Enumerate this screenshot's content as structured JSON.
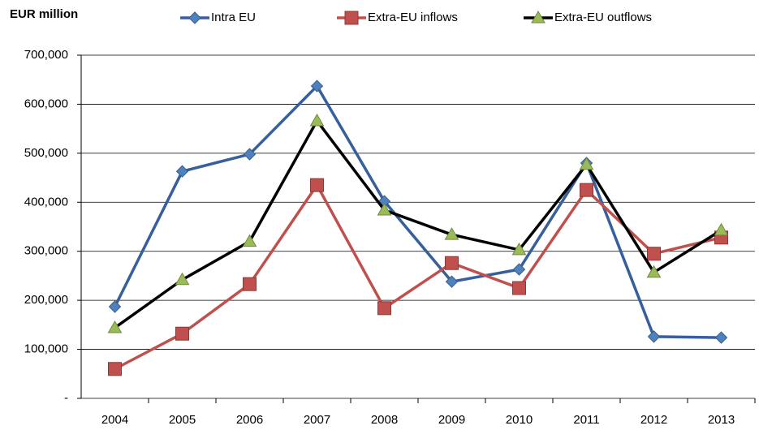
{
  "chart_data": {
    "type": "line",
    "title": "EUR million",
    "categories": [
      "2004",
      "2005",
      "2006",
      "2007",
      "2008",
      "2009",
      "2010",
      "2011",
      "2012",
      "2013"
    ],
    "series": [
      {
        "name": "Intra EU",
        "color": "#365f9c",
        "marker_color": "#4f81bd",
        "marker": "diamond",
        "values": [
          187000,
          463000,
          498000,
          637000,
          402000,
          238000,
          263000,
          480000,
          126000,
          124000
        ]
      },
      {
        "name": "Extra-EU inflows",
        "color": "#c0504d",
        "marker_color": "#c0504d",
        "marker": "square",
        "values": [
          60000,
          132000,
          233000,
          435000,
          184000,
          276000,
          225000,
          425000,
          295000,
          328000
        ]
      },
      {
        "name": "Extra-EU outflows",
        "color": "#000000",
        "marker_color": "#9bbb59",
        "marker": "triangle",
        "values": [
          144000,
          242000,
          320000,
          566000,
          384000,
          334000,
          303000,
          477000,
          257000,
          343000
        ]
      }
    ],
    "ylim": [
      0,
      700000
    ],
    "yticks": [
      {
        "value": 0,
        "label": "-"
      },
      {
        "value": 100000,
        "label": "100,000"
      },
      {
        "value": 200000,
        "label": "200,000"
      },
      {
        "value": 300000,
        "label": "300,000"
      },
      {
        "value": 400000,
        "label": "400,000"
      },
      {
        "value": 500000,
        "label": "500,000"
      },
      {
        "value": 600000,
        "label": "600,000"
      },
      {
        "value": 700000,
        "label": "700,000"
      }
    ],
    "grid": true
  }
}
